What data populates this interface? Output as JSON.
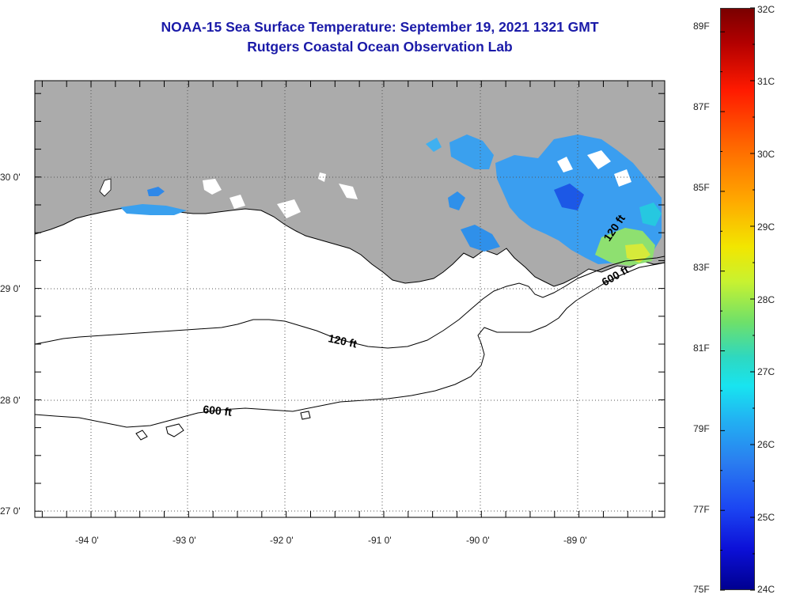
{
  "title": {
    "line1": "NOAA-15 Sea Surface Temperature:  September 19, 2021 1321 GMT",
    "line2": "Rutgers Coastal Ocean Observation Lab"
  },
  "map": {
    "lat_labels": [
      "30 0'",
      "29 0'",
      "28 0'",
      "27 0'"
    ],
    "lon_labels": [
      "-94 0'",
      "-93 0'",
      "-92 0'",
      "-91 0'",
      "-90 0'",
      "-89 0'"
    ],
    "contours": [
      {
        "label": "120 ft",
        "depth_ft": 120
      },
      {
        "label": "600 ft",
        "depth_ft": 600
      },
      {
        "label": "120 ft",
        "depth_ft": 120
      },
      {
        "label": "600 ft",
        "depth_ft": 600
      }
    ],
    "colors": {
      "land": "#ababab",
      "water_nodata": "#ffffff",
      "frame": "#000000"
    }
  },
  "colorbar": {
    "fahrenheit": [
      "89F",
      "87F",
      "85F",
      "83F",
      "81F",
      "79F",
      "77F",
      "75F"
    ],
    "celsius": [
      "32C",
      "31C",
      "30C",
      "29C",
      "28C",
      "27C",
      "26C",
      "25C",
      "24C"
    ],
    "range_f": [
      75,
      89.6
    ],
    "range_c": [
      24,
      32
    ],
    "colormap": "jet"
  }
}
